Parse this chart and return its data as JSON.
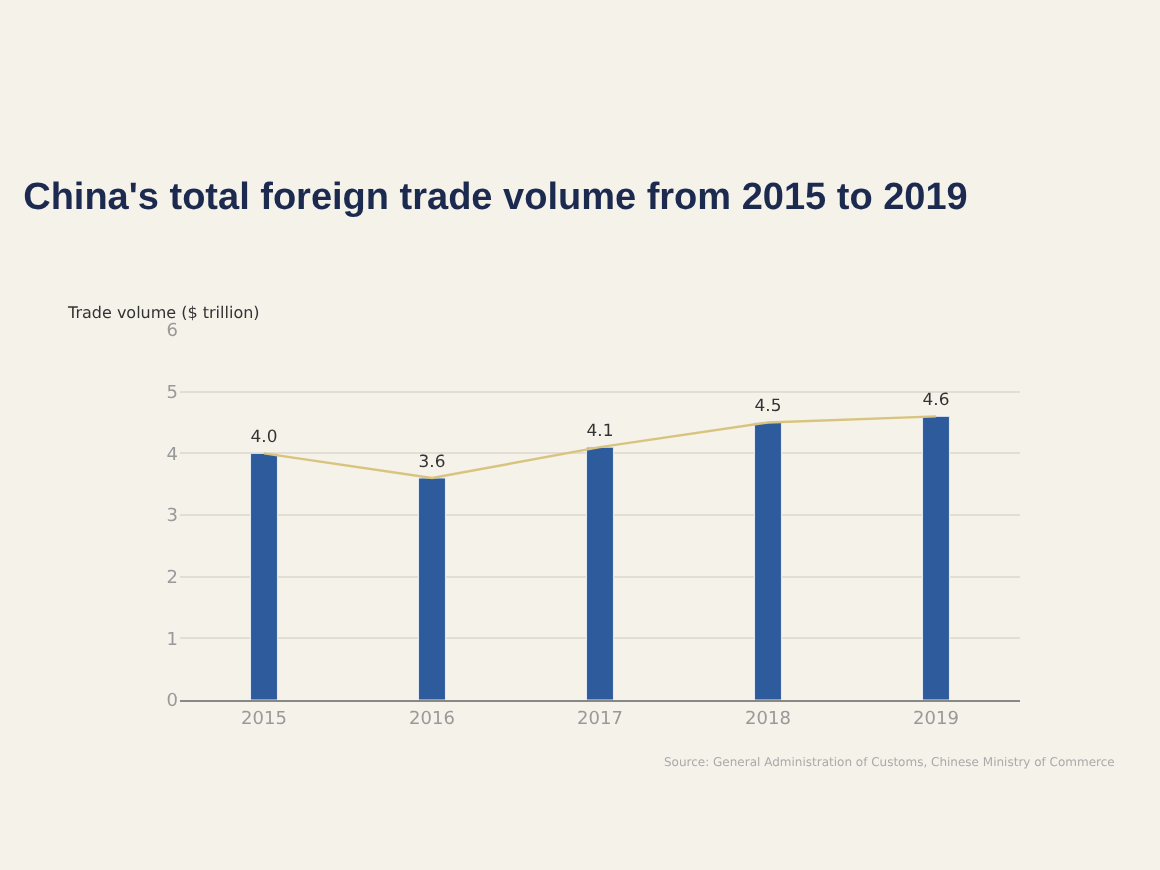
{
  "chart_data": {
    "type": "bar",
    "title": "China's total foreign trade volume from 2015 to 2019",
    "ylabel": "Trade volume ($ trillion)",
    "categories": [
      "2015",
      "2016",
      "2017",
      "2018",
      "2019"
    ],
    "series": [
      {
        "color": "#2d5b9b",
        "values": [
          4.0,
          3.6,
          4.1,
          4.5,
          4.6
        ],
        "value_labels": [
          "4.0",
          "3.6",
          "4.1",
          "4.5",
          "4.6"
        ]
      },
      {
        "type": "line",
        "color": "#d8c47e",
        "values": [
          4.0,
          3.6,
          4.1,
          4.5,
          4.6
        ]
      }
    ],
    "ylim": [
      0,
      6
    ],
    "yticks": [
      0,
      1,
      2,
      3,
      4,
      5,
      6
    ],
    "grid": "y",
    "legend": false,
    "marker": "none",
    "annotations": [
      "Source: General Administration of Customs, Chinese Ministry of Commerce"
    ]
  }
}
